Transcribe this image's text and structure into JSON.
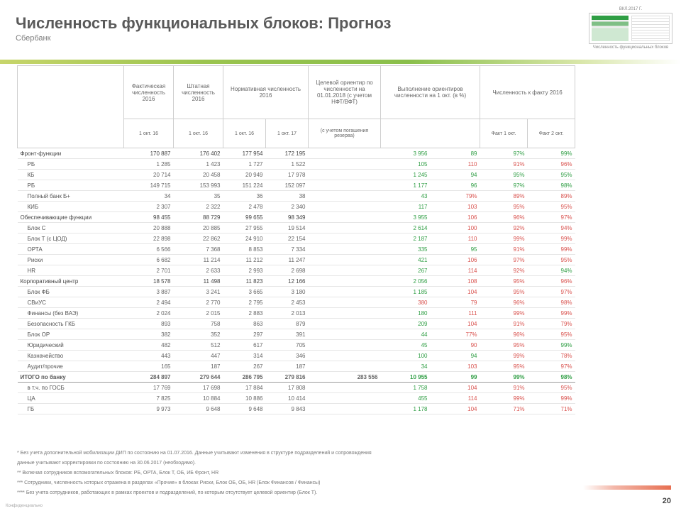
{
  "header": {
    "title": "Численность функциональных блоков: Прогноз",
    "subtitle": "Сбербанк"
  },
  "thumbnail": {
    "label": "ВКЛ.2017 Г.",
    "caption": "Численность функциональных блоков"
  },
  "table": {
    "group_headers": [
      "Фактическая численность 2016",
      "Штатная численность 2016",
      "Нормативная численность 2016",
      "Целевой ориентир по численности на 01.01.2018 (с учетом НФТ/ВФТ)",
      "Выполнение ориентиров численности на 1 окт. (в %)",
      "Численность к факту 2016"
    ],
    "sub_headers": {
      "c1": "1 окт. 16",
      "c2": "1 окт. 16",
      "c3a": "1 окт. 16",
      "c3b": "1 окт. 17",
      "target_note": "(с учетом погашения резерва)",
      "c6a": "Факт 1 окт.",
      "c6b": "Факт 2 окт."
    },
    "rows": [
      {
        "level": "group",
        "name": "Фронт-функции",
        "c": [
          "170 887",
          "176 402",
          "177 954",
          "172 195",
          "",
          "3 956",
          "89",
          "97%",
          "99%"
        ],
        "cls": [
          "",
          "",
          "",
          "",
          "",
          "g",
          "g",
          "g",
          "g"
        ]
      },
      {
        "level": "sub",
        "name": "РБ",
        "c": [
          "1 285",
          "1 423",
          "1 727",
          "1 522",
          "",
          "105",
          "110",
          "91%",
          "96%"
        ],
        "cls": [
          "",
          "",
          "",
          "",
          "",
          "g",
          "r",
          "r",
          "r"
        ]
      },
      {
        "level": "sub",
        "name": "КБ",
        "c": "20 714|20 458|20 949|17 978||1 245|94|95%|95%",
        "cls": [
          "",
          "",
          "",
          "",
          "",
          "g",
          "g",
          "g",
          "g"
        ]
      },
      {
        "level": "sub",
        "name": "РБ",
        "c": "149 715|153 993|151 224|152 097||1 177|96|97%|98%",
        "cls": [
          "",
          "",
          "",
          "",
          "",
          "g",
          "g",
          "g",
          "g"
        ]
      },
      {
        "level": "sub",
        "name": "Полный банк Б+",
        "c": "34|35|36|38||43|79%|89%|89%",
        "cls": [
          "",
          "",
          "",
          "",
          "",
          "g",
          "r",
          "r",
          "r"
        ]
      },
      {
        "level": "sub",
        "name": "КИБ",
        "c": "2 307|2 322|2 478|2 340||117|103|95%|95%",
        "cls": [
          "",
          "",
          "",
          "",
          "",
          "g",
          "r",
          "r",
          "r"
        ]
      },
      {
        "level": "group",
        "name": "Обеспечивающие функции",
        "c": "98 455|88 729|99 655|98 349||3 955|106|96%|97%",
        "cls": [
          "",
          "",
          "",
          "",
          "",
          "g",
          "r",
          "r",
          "r"
        ]
      },
      {
        "level": "sub",
        "name": "Блок С",
        "c": "20 888|20 885|27 955|19 514||2 614|100|92%|94%",
        "cls": [
          "",
          "",
          "",
          "",
          "",
          "g",
          "r",
          "r",
          "r"
        ]
      },
      {
        "level": "sub",
        "name": "Блок Т (с ЦОД)",
        "c": "22 898|22 862|24 910|22 154||2 187|110|99%|99%",
        "cls": [
          "",
          "",
          "",
          "",
          "",
          "g",
          "r",
          "r",
          "r"
        ]
      },
      {
        "level": "sub",
        "name": "ОРТА",
        "c": "6 566|7 368|8 853|7 334||335|95|91%|99%",
        "cls": [
          "",
          "",
          "",
          "",
          "",
          "g",
          "g",
          "r",
          "r"
        ]
      },
      {
        "level": "sub",
        "name": "Риски",
        "c": "6 682|11 214|11 212|11 247||421|106|97%|95%",
        "cls": [
          "",
          "",
          "",
          "",
          "",
          "g",
          "r",
          "r",
          "r"
        ]
      },
      {
        "level": "sub",
        "name": "HR",
        "c": "2 701|2 633|2 993|2 698||267|114|92%|94%",
        "cls": [
          "",
          "",
          "",
          "",
          "",
          "g",
          "r",
          "r",
          "g"
        ]
      },
      {
        "level": "group",
        "name": "Корпоративный центр",
        "c": "18 578|11 498|11 823|12 166||2 056|108|95%|96%",
        "cls": [
          "",
          "",
          "",
          "",
          "",
          "g",
          "r",
          "r",
          "r"
        ]
      },
      {
        "level": "sub",
        "name": "Блок ФБ",
        "c": "3 887|3 241|3 665|3 180||1 185|104|95%|97%",
        "cls": [
          "",
          "",
          "",
          "",
          "",
          "g",
          "r",
          "r",
          "r"
        ]
      },
      {
        "level": "sub",
        "name": "СВиУС",
        "c": "2 494|2 770|2 795|2 453||380|79|96%|98%",
        "cls": [
          "",
          "",
          "",
          "",
          "",
          "r",
          "r",
          "r",
          "r"
        ]
      },
      {
        "level": "sub",
        "name": "Финансы (без ВАЭ)",
        "c": "2 024|2 015|2 883|2 013||180|111|99%|99%",
        "cls": [
          "",
          "",
          "",
          "",
          "",
          "g",
          "r",
          "r",
          "r"
        ]
      },
      {
        "level": "sub",
        "name": "Безопасность ГКБ",
        "c": "893|758|863|879||209|104|91%|79%",
        "cls": [
          "",
          "",
          "",
          "",
          "",
          "g",
          "r",
          "r",
          "r"
        ]
      },
      {
        "level": "sub",
        "name": "Блок ОР",
        "c": "382|352|297|391||44|77%|96%|95%",
        "cls": [
          "",
          "",
          "",
          "",
          "",
          "g",
          "r",
          "r",
          "r"
        ]
      },
      {
        "level": "sub",
        "name": "Юридический",
        "c": "482|512|617|705||45|90|95%|99%",
        "cls": [
          "",
          "",
          "",
          "",
          "",
          "g",
          "r",
          "r",
          "g"
        ]
      },
      {
        "level": "sub",
        "name": "Казначейство",
        "c": "443|447|314|346||100|94|99%|78%",
        "cls": [
          "",
          "",
          "",
          "",
          "",
          "g",
          "g",
          "r",
          "r"
        ]
      },
      {
        "level": "sub",
        "name": "Аудит/прочие",
        "c": "165|187|267|187||34|103|95%|97%",
        "cls": [
          "",
          "",
          "",
          "",
          "",
          "g",
          "r",
          "r",
          "r"
        ]
      },
      {
        "level": "total",
        "name": "ИТОГО по банку",
        "c": "284 897|279 644|286 795|279 816|283 556|10 955|99|99%|98%",
        "cls": [
          "",
          "",
          "",
          "",
          "",
          "g",
          "g",
          "g",
          "g"
        ]
      },
      {
        "level": "sub",
        "name": "в т.ч. по ГОСБ",
        "c": "17 769|17 698|17 884|17 808||1 758|104|91%|95%",
        "cls": [
          "",
          "",
          "",
          "",
          "",
          "g",
          "r",
          "r",
          "r"
        ]
      },
      {
        "level": "sub",
        "name": "ЦА",
        "c": "7 825|10 884|10 886|10 414||455|114|99%|99%",
        "cls": [
          "",
          "",
          "",
          "",
          "",
          "g",
          "r",
          "r",
          "r"
        ]
      },
      {
        "level": "sub",
        "name": "ГБ",
        "c": "9 973|9 648|9 648|9 843||1 178|104|71%|71%",
        "cls": [
          "",
          "",
          "",
          "",
          "",
          "g",
          "r",
          "r",
          "r"
        ]
      }
    ]
  },
  "notes": [
    "* Без учета дополнительной мобилизации ДИП по состоянию на 01.07.2016. Данные учитывают изменения в структуре подразделений и сопровождения",
    "данные учитывают корректировки по состоянию на 30.06.2017 (необходимо).",
    "** Включая сотрудников вспомогательных блоков: РБ, ОРТА, Блок Т, ОБ, ИБ Фронт, HR",
    "*** Сотрудники, численность которых отражена в разделах «Прочие» в блоках Риски, Блок ОБ, ОБ, HR (Блок Финансов / Финансы)",
    "**** Без учета сотрудников, работающих в рамках проектов и подразделений, по которым отсутствует целевой ориентир (Блок Т)."
  ],
  "footer": {
    "page_number": "20",
    "confidential": "Конфиденциально"
  }
}
